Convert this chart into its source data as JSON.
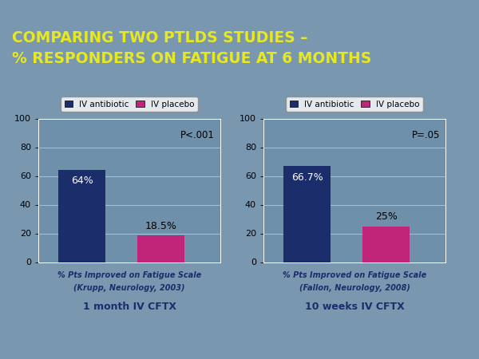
{
  "title_line1": "COMPARING TWO PTLDS STUDIES –",
  "title_line2": "% RESPONDERS ON FATIGUE AT 6 MONTHS",
  "title_bg_color": "#1c2d6b",
  "title_text_color": "#e8e820",
  "bg_color": "#7a97b0",
  "chart_bg_color": "#6e90aa",
  "bar_color_antibiotic": "#1c2d6b",
  "bar_color_placebo": "#c0257a",
  "study1": {
    "antibiotic_val": 64,
    "placebo_val": 18.5,
    "antibiotic_label": "64%",
    "placebo_label": "18.5%",
    "pvalue": "P<.001",
    "xlabel_line1": "% Pts Improved on Fatigue Scale",
    "xlabel_line2": "(Krupp, Neurology, 2003)",
    "xlabel_line3": "1 month IV CFTX"
  },
  "study2": {
    "antibiotic_val": 66.7,
    "placebo_val": 25,
    "antibiotic_label": "66.7%",
    "placebo_label": "25%",
    "pvalue": "P=.05",
    "xlabel_line1": "% Pts Improved on Fatigue Scale",
    "xlabel_line2": "(Fallon, Neurology, 2008)",
    "xlabel_line3": "10 weeks IV CFTX"
  },
  "legend_label_antibiotic": "IV antibiotic",
  "legend_label_placebo": "IV placebo",
  "ylim": [
    0,
    100
  ],
  "yticks": [
    0,
    20,
    40,
    60,
    80,
    100
  ]
}
